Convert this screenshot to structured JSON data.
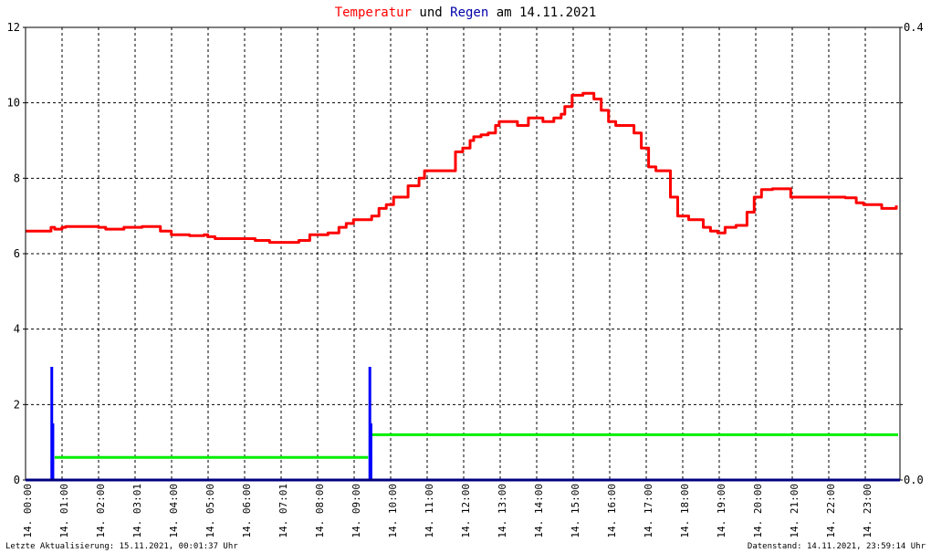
{
  "title": {
    "part1": "Temperatur",
    "part2": " und ",
    "part3": "Regen",
    "part4": " am 14.11.2021",
    "color1": "#ff0000",
    "color2": "#000000",
    "color3": "#0000aa",
    "color4": "#000000"
  },
  "footer": {
    "left": "Letzte Aktualisierung: 15.11.2021, 00:01:37 Uhr",
    "right": "Datenstand: 14.11.2021, 23:59:14 Uhr"
  },
  "chart_data": {
    "type": "line",
    "title": "Temperatur und Regen am 14.11.2021",
    "xlim": [
      0,
      24
    ],
    "ylim_left": [
      0,
      12
    ],
    "ylim_right": [
      0,
      0.4
    ],
    "yticks_left": [
      "0",
      "2",
      "4",
      "6",
      "8",
      "10",
      "12"
    ],
    "yticks_right": [
      "0.0",
      "0.4"
    ],
    "xticks": [
      "14. 00:00",
      "14. 01:00",
      "14. 02:00",
      "14. 03:01",
      "14. 04:00",
      "14. 05:00",
      "14. 06:00",
      "14. 07:01",
      "14. 08:00",
      "14. 09:00",
      "14. 10:00",
      "14. 11:00",
      "14. 12:00",
      "14. 13:00",
      "14. 14:00",
      "14. 15:00",
      "14. 16:00",
      "14. 17:00",
      "14. 18:00",
      "14. 19:00",
      "14. 20:00",
      "14. 21:00",
      "14. 22:00",
      "14. 23:00"
    ],
    "grid": true,
    "colors": {
      "temperature": "#ff0000",
      "rain": "#0000ff",
      "rain_total": "#00ee00",
      "axis": "#000080"
    },
    "series": [
      {
        "key": "temperature",
        "axis": "left",
        "x": [
          0,
          0.65,
          0.7,
          0.8,
          1.0,
          1.1,
          1.5,
          1.95,
          2.0,
          2.2,
          2.7,
          3.0,
          3.2,
          3.6,
          3.7,
          3.85,
          4.0,
          4.4,
          4.5,
          4.9,
          5.0,
          5.2,
          5.5,
          6.0,
          6.3,
          6.5,
          6.7,
          7.0,
          7.3,
          7.5,
          7.8,
          8.0,
          8.3,
          8.6,
          8.8,
          9.0,
          9.2,
          9.5,
          9.7,
          9.9,
          10.1,
          10.3,
          10.5,
          10.8,
          10.95,
          11.0,
          11.2,
          11.5,
          11.8,
          12.0,
          12.2,
          12.3,
          12.5,
          12.7,
          12.9,
          13.0,
          13.2,
          13.5,
          13.8,
          14.0,
          14.2,
          14.5,
          14.7,
          14.8,
          15.0,
          15.3,
          15.5,
          15.6,
          15.8,
          16.0,
          16.2,
          16.5,
          16.7,
          16.9,
          17.1,
          17.3,
          17.5,
          17.7,
          17.9,
          18.2,
          18.6,
          18.8,
          19.0,
          19.2,
          19.5,
          19.8,
          20.0,
          20.2,
          20.5,
          20.8,
          21.0,
          21.5,
          22.0,
          22.5,
          22.8,
          23.0,
          23.5,
          23.9
        ],
        "y": [
          6.6,
          6.6,
          6.7,
          6.65,
          6.7,
          6.72,
          6.72,
          6.72,
          6.7,
          6.65,
          6.7,
          6.7,
          6.72,
          6.72,
          6.6,
          6.6,
          6.5,
          6.5,
          6.48,
          6.5,
          6.45,
          6.4,
          6.4,
          6.4,
          6.35,
          6.35,
          6.3,
          6.3,
          6.3,
          6.35,
          6.5,
          6.5,
          6.55,
          6.7,
          6.8,
          6.9,
          6.9,
          7.0,
          7.2,
          7.3,
          7.5,
          7.5,
          7.8,
          8.0,
          8.2,
          8.2,
          8.2,
          8.2,
          8.7,
          8.8,
          9.0,
          9.1,
          9.15,
          9.2,
          9.4,
          9.5,
          9.5,
          9.4,
          9.6,
          9.6,
          9.5,
          9.6,
          9.7,
          9.9,
          10.2,
          10.25,
          10.25,
          10.1,
          9.8,
          9.5,
          9.4,
          9.4,
          9.2,
          8.8,
          8.3,
          8.2,
          8.2,
          7.5,
          7.0,
          6.9,
          6.7,
          6.6,
          6.55,
          6.7,
          6.75,
          7.1,
          7.5,
          7.7,
          7.72,
          7.72,
          7.5,
          7.5,
          7.5,
          7.48,
          7.35,
          7.3,
          7.2,
          7.28
        ]
      },
      {
        "key": "rain",
        "axis": "right",
        "bars": [
          {
            "x": 0.72,
            "y": 0.1
          },
          {
            "x": 0.75,
            "y": 0.05
          },
          {
            "x": 9.45,
            "y": 0.1
          },
          {
            "x": 9.48,
            "y": 0.05
          }
        ]
      },
      {
        "key": "rain_total",
        "axis": "left",
        "steps": [
          {
            "x0": 0.8,
            "x1": 9.4,
            "y": 0.6
          },
          {
            "x0": 9.5,
            "x1": 23.95,
            "y": 1.2
          }
        ]
      }
    ]
  }
}
